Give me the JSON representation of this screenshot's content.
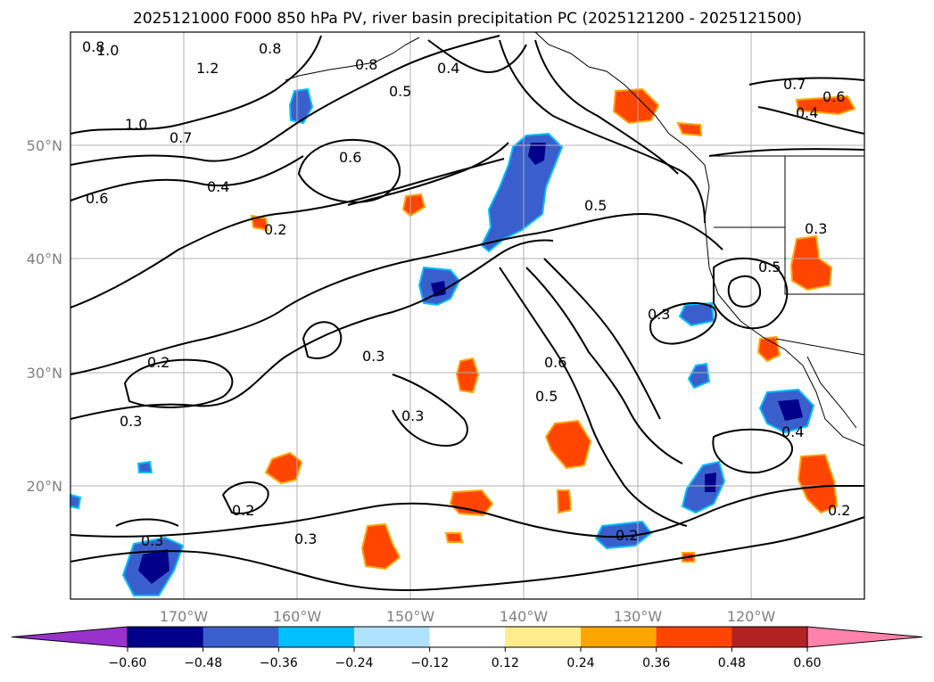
{
  "title": "2025121000 F000 850 hPa PV, river basin precipitation PC (2025121200 - 2025121500)",
  "map": {
    "lon_ticks": [
      "170°W",
      "160°W",
      "150°W",
      "140°W",
      "130°W",
      "120°W"
    ],
    "lat_ticks": [
      "50°N",
      "40°N",
      "30°N",
      "20°N"
    ],
    "grid": true,
    "extent": {
      "lon_min": -180,
      "lon_max": -110,
      "lat_min": 10,
      "lat_max": 60
    }
  },
  "pv_contour_labels": [
    "0.8",
    "1.0",
    "0.8",
    "1.2",
    "0.8",
    "0.4",
    "1.0",
    "0.5",
    "0.7",
    "0.6",
    "0.4",
    "0.6",
    "0.2",
    "0.5",
    "0.3",
    "0.5",
    "0.3",
    "0.6",
    "0.2",
    "0.3",
    "0.5",
    "0.3",
    "0.3",
    "0.2",
    "0.3",
    "0.2",
    "0.3",
    "0.4",
    "0.7",
    "0.6",
    "0.4",
    "0.2"
  ],
  "colorbar": {
    "ticks": [
      "−0.60",
      "−0.48",
      "−0.36",
      "−0.24",
      "−0.12",
      "0.12",
      "0.24",
      "0.36",
      "0.48",
      "0.60"
    ],
    "colors": [
      "#9932cc",
      "#00008b",
      "#3a5fcd",
      "#00bfff",
      "#b0e2ff",
      "#ffffff",
      "#ffec8b",
      "#ffa500",
      "#ff4500",
      "#b22222",
      "#ff82ab"
    ]
  },
  "precip_colors": {
    "neg_strong": "#00008b",
    "neg_mid": "#3a5fcd",
    "neg_weak": "#00bfff",
    "pos_weak": "#ffa500",
    "pos_mid": "#ff4500",
    "pos_strong": "#b22222"
  }
}
